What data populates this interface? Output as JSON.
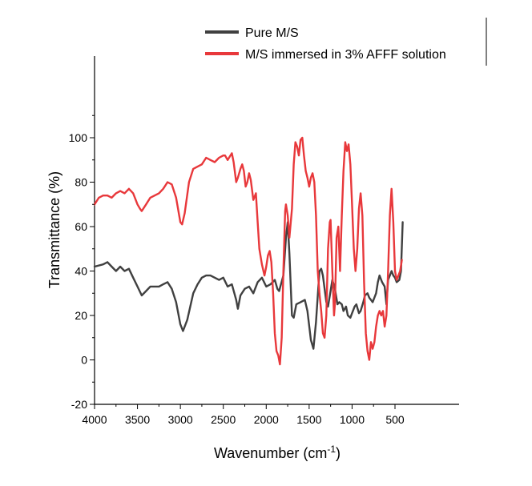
{
  "chart_data": {
    "type": "line",
    "title": "",
    "xlabel": "Wavenumber (cm",
    "xlabel_superscript": "-1",
    "xlabel_suffix": ")",
    "ylabel": "Transmittance (%)",
    "xlim": [
      4000,
      400
    ],
    "ylim": [
      -20,
      110
    ],
    "x_reversed": true,
    "x_ticks": [
      4000,
      3500,
      3000,
      2500,
      2000,
      1500,
      1000,
      500
    ],
    "y_ticks": [
      -20,
      0,
      20,
      40,
      60,
      80,
      100
    ],
    "grid": false,
    "legend_position": "top-right",
    "series": [
      {
        "name": "Pure M/S",
        "color": "#404040",
        "points": [
          [
            4000,
            42
          ],
          [
            3900,
            43
          ],
          [
            3850,
            44
          ],
          [
            3800,
            42
          ],
          [
            3750,
            40
          ],
          [
            3700,
            42
          ],
          [
            3650,
            40
          ],
          [
            3600,
            41
          ],
          [
            3550,
            37
          ],
          [
            3500,
            33
          ],
          [
            3450,
            29
          ],
          [
            3400,
            31
          ],
          [
            3350,
            33
          ],
          [
            3300,
            33
          ],
          [
            3250,
            33
          ],
          [
            3200,
            34
          ],
          [
            3150,
            35
          ],
          [
            3100,
            32
          ],
          [
            3050,
            26
          ],
          [
            3000,
            16
          ],
          [
            2970,
            13
          ],
          [
            2920,
            18
          ],
          [
            2850,
            30
          ],
          [
            2800,
            34
          ],
          [
            2750,
            37
          ],
          [
            2700,
            38
          ],
          [
            2650,
            38
          ],
          [
            2600,
            37
          ],
          [
            2550,
            36
          ],
          [
            2500,
            37
          ],
          [
            2450,
            33
          ],
          [
            2400,
            34
          ],
          [
            2350,
            27
          ],
          [
            2330,
            23
          ],
          [
            2300,
            29
          ],
          [
            2250,
            32
          ],
          [
            2200,
            33
          ],
          [
            2150,
            30
          ],
          [
            2100,
            35
          ],
          [
            2050,
            37
          ],
          [
            2000,
            33
          ],
          [
            1950,
            34
          ],
          [
            1900,
            36
          ],
          [
            1870,
            32
          ],
          [
            1850,
            31
          ],
          [
            1800,
            38
          ],
          [
            1770,
            55
          ],
          [
            1750,
            62
          ],
          [
            1730,
            48
          ],
          [
            1700,
            20
          ],
          [
            1680,
            19
          ],
          [
            1650,
            25
          ],
          [
            1600,
            26
          ],
          [
            1550,
            27
          ],
          [
            1520,
            22
          ],
          [
            1480,
            9
          ],
          [
            1450,
            5
          ],
          [
            1420,
            17
          ],
          [
            1380,
            40
          ],
          [
            1360,
            41
          ],
          [
            1340,
            38
          ],
          [
            1300,
            26
          ],
          [
            1280,
            24
          ],
          [
            1250,
            31
          ],
          [
            1230,
            36
          ],
          [
            1200,
            32
          ],
          [
            1170,
            25
          ],
          [
            1150,
            26
          ],
          [
            1120,
            25
          ],
          [
            1100,
            22
          ],
          [
            1070,
            24
          ],
          [
            1050,
            20
          ],
          [
            1020,
            19
          ],
          [
            1000,
            21
          ],
          [
            970,
            24
          ],
          [
            950,
            25
          ],
          [
            920,
            21
          ],
          [
            900,
            22
          ],
          [
            870,
            26
          ],
          [
            850,
            29
          ],
          [
            820,
            30
          ],
          [
            800,
            28
          ],
          [
            760,
            26
          ],
          [
            720,
            30
          ],
          [
            700,
            35
          ],
          [
            680,
            38
          ],
          [
            650,
            35
          ],
          [
            620,
            33
          ],
          [
            600,
            25
          ],
          [
            580,
            36
          ],
          [
            560,
            38
          ],
          [
            540,
            40
          ],
          [
            520,
            38
          ],
          [
            500,
            37
          ],
          [
            480,
            35
          ],
          [
            450,
            36
          ],
          [
            430,
            40
          ],
          [
            410,
            62
          ]
        ]
      },
      {
        "name": "M/S immersed in 3% AFFF solution",
        "color": "#e8383b",
        "points": [
          [
            4000,
            70
          ],
          [
            3950,
            73
          ],
          [
            3900,
            74
          ],
          [
            3850,
            74
          ],
          [
            3800,
            73
          ],
          [
            3750,
            75
          ],
          [
            3700,
            76
          ],
          [
            3650,
            75
          ],
          [
            3600,
            77
          ],
          [
            3550,
            75
          ],
          [
            3500,
            70
          ],
          [
            3470,
            68
          ],
          [
            3450,
            67
          ],
          [
            3400,
            70
          ],
          [
            3350,
            73
          ],
          [
            3300,
            74
          ],
          [
            3250,
            75
          ],
          [
            3200,
            77
          ],
          [
            3150,
            80
          ],
          [
            3100,
            79
          ],
          [
            3050,
            73
          ],
          [
            3000,
            62
          ],
          [
            2980,
            61
          ],
          [
            2950,
            66
          ],
          [
            2900,
            80
          ],
          [
            2850,
            86
          ],
          [
            2800,
            87
          ],
          [
            2750,
            88
          ],
          [
            2700,
            91
          ],
          [
            2650,
            90
          ],
          [
            2600,
            89
          ],
          [
            2550,
            91
          ],
          [
            2500,
            92
          ],
          [
            2480,
            92
          ],
          [
            2450,
            90
          ],
          [
            2400,
            93
          ],
          [
            2380,
            89
          ],
          [
            2350,
            80
          ],
          [
            2330,
            82
          ],
          [
            2300,
            86
          ],
          [
            2280,
            88
          ],
          [
            2260,
            85
          ],
          [
            2240,
            78
          ],
          [
            2220,
            80
          ],
          [
            2200,
            84
          ],
          [
            2180,
            81
          ],
          [
            2150,
            72
          ],
          [
            2120,
            75
          ],
          [
            2100,
            62
          ],
          [
            2080,
            50
          ],
          [
            2050,
            43
          ],
          [
            2020,
            38
          ],
          [
            2000,
            42
          ],
          [
            1980,
            47
          ],
          [
            1960,
            49
          ],
          [
            1940,
            44
          ],
          [
            1920,
            30
          ],
          [
            1900,
            12
          ],
          [
            1880,
            4
          ],
          [
            1860,
            2
          ],
          [
            1840,
            -2
          ],
          [
            1820,
            10
          ],
          [
            1800,
            40
          ],
          [
            1780,
            67
          ],
          [
            1770,
            70
          ],
          [
            1750,
            65
          ],
          [
            1730,
            55
          ],
          [
            1700,
            68
          ],
          [
            1680,
            88
          ],
          [
            1660,
            98
          ],
          [
            1640,
            96
          ],
          [
            1620,
            92
          ],
          [
            1600,
            99
          ],
          [
            1580,
            100
          ],
          [
            1560,
            92
          ],
          [
            1540,
            85
          ],
          [
            1520,
            82
          ],
          [
            1500,
            78
          ],
          [
            1480,
            82
          ],
          [
            1460,
            84
          ],
          [
            1440,
            80
          ],
          [
            1420,
            65
          ],
          [
            1400,
            40
          ],
          [
            1380,
            30
          ],
          [
            1360,
            22
          ],
          [
            1340,
            12
          ],
          [
            1320,
            10
          ],
          [
            1300,
            20
          ],
          [
            1280,
            50
          ],
          [
            1260,
            62
          ],
          [
            1250,
            63
          ],
          [
            1230,
            40
          ],
          [
            1210,
            20
          ],
          [
            1200,
            25
          ],
          [
            1180,
            55
          ],
          [
            1160,
            60
          ],
          [
            1140,
            40
          ],
          [
            1120,
            65
          ],
          [
            1100,
            85
          ],
          [
            1080,
            98
          ],
          [
            1060,
            94
          ],
          [
            1040,
            97
          ],
          [
            1020,
            88
          ],
          [
            1000,
            70
          ],
          [
            980,
            50
          ],
          [
            960,
            40
          ],
          [
            940,
            50
          ],
          [
            920,
            68
          ],
          [
            900,
            75
          ],
          [
            880,
            65
          ],
          [
            860,
            35
          ],
          [
            840,
            12
          ],
          [
            820,
            4
          ],
          [
            800,
            0
          ],
          [
            780,
            8
          ],
          [
            760,
            5
          ],
          [
            740,
            8
          ],
          [
            720,
            15
          ],
          [
            700,
            20
          ],
          [
            680,
            22
          ],
          [
            660,
            20
          ],
          [
            640,
            22
          ],
          [
            620,
            15
          ],
          [
            600,
            20
          ],
          [
            580,
            40
          ],
          [
            560,
            65
          ],
          [
            540,
            77
          ],
          [
            520,
            62
          ],
          [
            500,
            40
          ],
          [
            480,
            36
          ],
          [
            460,
            38
          ],
          [
            440,
            40
          ],
          [
            420,
            45
          ]
        ]
      }
    ]
  }
}
